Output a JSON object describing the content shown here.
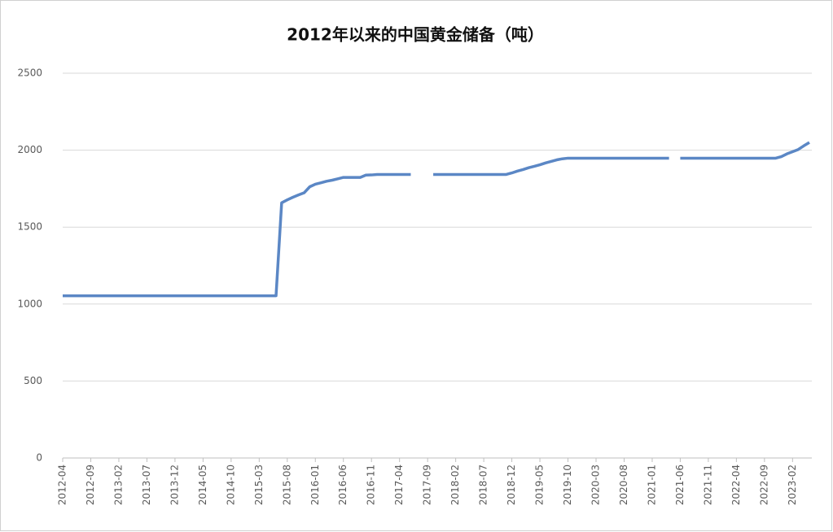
{
  "chart_data": {
    "type": "line",
    "title": "2012年以来的中国黄金储备（吨）",
    "categories": [
      "2012-04",
      null,
      null,
      null,
      null,
      "2012-09",
      null,
      null,
      null,
      null,
      "2013-02",
      null,
      null,
      null,
      null,
      "2013-07",
      null,
      null,
      null,
      null,
      "2013-12",
      null,
      null,
      null,
      null,
      "2014-05",
      null,
      null,
      null,
      null,
      "2014-10",
      null,
      null,
      null,
      null,
      "2015-03",
      null,
      null,
      null,
      null,
      "2015-08",
      null,
      null,
      null,
      null,
      "2016-01",
      null,
      null,
      null,
      null,
      "2016-06",
      null,
      null,
      null,
      null,
      "2016-11",
      null,
      null,
      null,
      null,
      "2017-04",
      null,
      null,
      null,
      null,
      "2017-09",
      null,
      null,
      null,
      null,
      "2018-02",
      null,
      null,
      null,
      null,
      "2018-07",
      null,
      null,
      null,
      null,
      "2018-12",
      null,
      null,
      null,
      null,
      "2019-05",
      null,
      null,
      null,
      null,
      "2019-10",
      null,
      null,
      null,
      null,
      "2020-03",
      null,
      null,
      null,
      null,
      "2020-08",
      null,
      null,
      null,
      null,
      "2021-01",
      null,
      null,
      null,
      null,
      "2021-06",
      null,
      null,
      null,
      null,
      "2021-11",
      null,
      null,
      null,
      null,
      "2022-04",
      null,
      null,
      null,
      null,
      "2022-09",
      null,
      null,
      null,
      null,
      "2023-02",
      null,
      null,
      null
    ],
    "series": [
      {
        "color": "#5b87c5",
        "values": [
          1054,
          1054,
          1054,
          1054,
          1054,
          1054,
          1054,
          1054,
          1054,
          1054,
          1054,
          1054,
          1054,
          1054,
          1054,
          1054,
          1054,
          1054,
          1054,
          1054,
          1054,
          1054,
          1054,
          1054,
          1054,
          1054,
          1054,
          1054,
          1054,
          1054,
          1054,
          1054,
          1054,
          1054,
          1054,
          1054,
          1054,
          1054,
          1054,
          1658,
          1677,
          1694,
          1709,
          1723,
          1762,
          1779,
          1788,
          1798,
          1805,
          1814,
          1823,
          1823,
          1823,
          1823,
          1838,
          1839,
          1842,
          1842,
          1842,
          1842,
          1842,
          1842,
          1842,
          null,
          null,
          null,
          1842,
          1842,
          1842,
          1842,
          1842,
          1842,
          1842,
          1842,
          1842,
          1842,
          1842,
          1842,
          1842,
          1842,
          1852,
          1864,
          1874,
          1886,
          1895,
          1905,
          1917,
          1927,
          1937,
          1944,
          1948,
          1948,
          1948,
          1948,
          1948,
          1948,
          1948,
          1948,
          1948,
          1948,
          1948,
          1948,
          1948,
          1948,
          1948,
          1948,
          1948,
          1948,
          1948,
          null,
          1948,
          1948,
          1948,
          1948,
          1948,
          1948,
          1948,
          1948,
          1948,
          1948,
          1948,
          1948,
          1948,
          1948,
          1948,
          1948,
          1948,
          1948,
          1958,
          1976,
          1990,
          2004,
          2028,
          2050
        ]
      }
    ],
    "ylim": [
      0,
      2500
    ],
    "yticks": [
      0,
      500,
      1000,
      1500,
      2000,
      2500
    ],
    "grid": true
  }
}
